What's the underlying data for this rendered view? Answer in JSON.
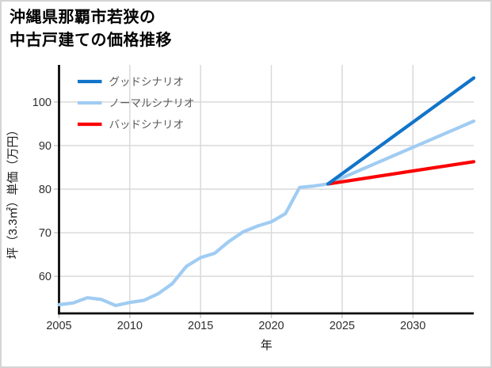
{
  "title_lines": [
    "沖縄県那覇市若狭の",
    "中古戸建ての価格推移"
  ],
  "chart_data": {
    "type": "line",
    "title": "沖縄県那覇市若狭の中古戸建ての価格推移",
    "xlabel": "年",
    "ylabel": "坪（3.3㎡）単価（万円）",
    "xlim": [
      2005,
      2034.3
    ],
    "ylim": [
      51.5,
      108.5
    ],
    "xticks": [
      2005,
      2010,
      2015,
      2020,
      2025,
      2030
    ],
    "yticks": [
      60,
      70,
      80,
      90,
      100
    ],
    "grid": true,
    "gridline_color": "#d9d9d9",
    "axis_color": "#0a0a0a",
    "tick_label_color": "#2e2e2e",
    "legend_text_color": "#595959",
    "legend_position": "upper-left",
    "legend": [
      "グッドシナリオ",
      "ノーマルシナリオ",
      "バッドシナリオ"
    ],
    "series": [
      {
        "id": "history",
        "name": "",
        "in_legend": false,
        "color": "#a0ccf2",
        "x": [
          2005,
          2006,
          2007,
          2008,
          2009,
          2010,
          2011,
          2012,
          2013,
          2014,
          2015,
          2016,
          2017,
          2018,
          2019,
          2020,
          2021,
          2022,
          2023,
          2024
        ],
        "y": [
          53.5,
          53.9,
          55.1,
          54.7,
          53.3,
          54.0,
          54.5,
          56.0,
          58.3,
          62.3,
          64.3,
          65.3,
          68.0,
          70.2,
          71.5,
          72.5,
          74.4,
          80.4,
          80.7,
          81.2
        ]
      },
      {
        "id": "normal",
        "name": "ノーマルシナリオ",
        "in_legend": true,
        "color": "#a0ccf2",
        "x": [
          2024,
          2034.3
        ],
        "y": [
          81.2,
          95.6
        ]
      },
      {
        "id": "bad",
        "name": "バッドシナリオ",
        "in_legend": true,
        "color": "#fa0000",
        "x": [
          2024,
          2034.3
        ],
        "y": [
          81.2,
          86.3
        ]
      },
      {
        "id": "good",
        "name": "グッドシナリオ",
        "in_legend": true,
        "color": "#1274c9",
        "x": [
          2024,
          2034.3
        ],
        "y": [
          81.2,
          105.5
        ]
      }
    ]
  }
}
